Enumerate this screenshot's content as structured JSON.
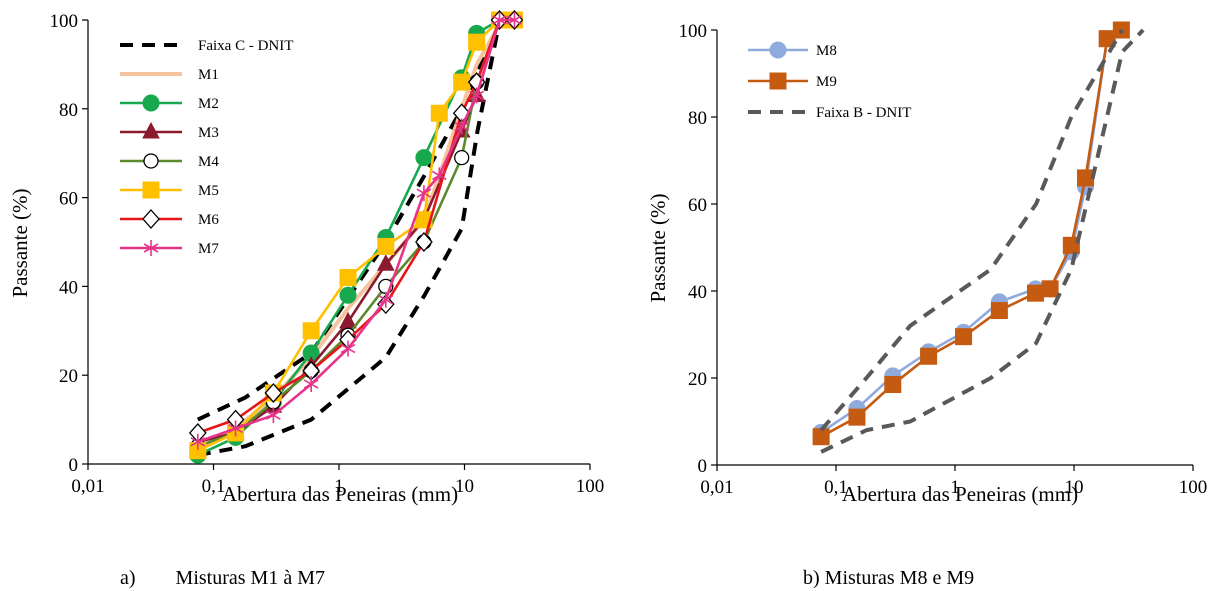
{
  "chart_data": [
    {
      "type": "line",
      "xscale": "log",
      "xlim": [
        0.01,
        100
      ],
      "ylim": [
        0,
        100
      ],
      "xticks": [
        0.01,
        0.1,
        1,
        10,
        100
      ],
      "xtick_labels": [
        "0,01",
        "0,1",
        "1",
        "10",
        "100"
      ],
      "yticks": [
        0,
        20,
        40,
        60,
        80,
        100
      ],
      "ytick_labels": [
        "0",
        "20",
        "40",
        "60",
        "80",
        "100"
      ],
      "xlabel": "Abertura das Peneiras (mm)",
      "ylabel": "Passante (%)",
      "caption": "a)        Misturas M1 à M7",
      "legend_position": "top-left",
      "grid": false,
      "series": [
        {
          "name": "Faixa C - DNIT",
          "color": "#000000",
          "style": "dashed",
          "marker": "none",
          "segments": [
            {
              "x": [
                0.075,
                0.18,
                0.6,
                2.36,
                4.8,
                9.5,
                19.1
              ],
              "y": [
                10,
                15,
                25,
                50,
                65,
                80,
                100
              ]
            },
            {
              "x": [
                0.075,
                0.18,
                0.6,
                2.36,
                4.8,
                9.5,
                12.7,
                19.1
              ],
              "y": [
                2,
                4,
                10,
                24,
                38,
                53,
                75,
                100
              ]
            }
          ]
        },
        {
          "name": "M1",
          "color": "#f5c49e",
          "style": "solid",
          "marker": "none",
          "width": 4,
          "x": [
            0.075,
            0.15,
            0.3,
            0.6,
            1.18,
            2.36,
            4.75,
            6.3,
            9.5,
            12.5,
            19,
            25
          ],
          "y": [
            3,
            8,
            15,
            24,
            35,
            45,
            55,
            65,
            80,
            90,
            99,
            100
          ]
        },
        {
          "name": "M2",
          "color": "#18a84e",
          "style": "solid",
          "marker": "circle-filled",
          "x": [
            0.075,
            0.15,
            0.3,
            0.6,
            1.18,
            2.36,
            4.75,
            9.5,
            12.5,
            19,
            25
          ],
          "y": [
            2,
            6,
            14,
            25,
            38,
            51,
            69,
            87,
            97,
            100,
            100
          ]
        },
        {
          "name": "M3",
          "color": "#8b1a2e",
          "style": "solid",
          "marker": "triangle-filled",
          "x": [
            0.075,
            0.15,
            0.3,
            0.6,
            1.18,
            2.36,
            4.75,
            9.5,
            12.5,
            19,
            25
          ],
          "y": [
            5,
            7,
            13,
            22,
            32,
            45,
            55,
            75,
            83,
            100,
            100
          ]
        },
        {
          "name": "M4",
          "color": "#5a8a2c",
          "style": "solid",
          "marker": "circle-open",
          "x": [
            0.075,
            0.15,
            0.3,
            0.6,
            1.18,
            2.36,
            4.75,
            9.5,
            12.5,
            19,
            25
          ],
          "y": [
            4,
            7,
            14,
            21,
            29,
            40,
            50,
            69,
            86,
            100,
            100
          ]
        },
        {
          "name": "M5",
          "color": "#ffc000",
          "style": "solid",
          "marker": "square-filled",
          "x": [
            0.075,
            0.15,
            0.3,
            0.6,
            1.18,
            2.36,
            4.75,
            6.3,
            9.5,
            12.5,
            19,
            25
          ],
          "y": [
            3,
            7,
            16,
            30,
            42,
            49,
            55,
            79,
            86,
            95,
            100,
            100
          ]
        },
        {
          "name": "M6",
          "color": "#e8161a",
          "style": "solid",
          "marker": "diamond-open",
          "x": [
            0.075,
            0.15,
            0.3,
            0.6,
            1.18,
            2.36,
            4.75,
            9.5,
            12.5,
            19,
            25
          ],
          "y": [
            7,
            10,
            16,
            21,
            28,
            36,
            50,
            79,
            86,
            100,
            100
          ]
        },
        {
          "name": "M7",
          "color": "#e8338a",
          "style": "solid",
          "marker": "asterisk",
          "x": [
            0.075,
            0.15,
            0.3,
            0.6,
            1.18,
            2.36,
            4.75,
            6.3,
            9.5,
            12.5,
            19,
            25
          ],
          "y": [
            5,
            8,
            11,
            18,
            26,
            37,
            61,
            65,
            76,
            83,
            100,
            100
          ]
        }
      ]
    },
    {
      "type": "line",
      "xscale": "log",
      "xlim": [
        0.01,
        100
      ],
      "ylim": [
        0,
        100
      ],
      "xticks": [
        0.01,
        0.1,
        1,
        10,
        100
      ],
      "xtick_labels": [
        "0,01",
        "0,1",
        "1",
        "10",
        "100"
      ],
      "yticks": [
        0,
        20,
        40,
        60,
        80,
        100
      ],
      "ytick_labels": [
        "0",
        "20",
        "40",
        "60",
        "80",
        "100"
      ],
      "xlabel": "Abertura das Peneiras (mm)",
      "ylabel": "Passante (%)",
      "caption": "b) Misturas M8 e M9",
      "legend_position": "top-left",
      "grid": false,
      "series": [
        {
          "name": "M8",
          "color": "#8faadc",
          "style": "solid",
          "marker": "circle-filled",
          "x": [
            0.075,
            0.15,
            0.3,
            0.6,
            1.18,
            2.36,
            4.75,
            6.3,
            9.5,
            12.5,
            19,
            25
          ],
          "y": [
            7.5,
            13,
            20.5,
            26,
            30.5,
            37.5,
            40.5,
            40.5,
            49,
            64,
            98,
            100
          ]
        },
        {
          "name": "M9",
          "color": "#c55a11",
          "style": "solid",
          "marker": "square-filled",
          "x": [
            0.075,
            0.15,
            0.3,
            0.6,
            1.18,
            2.36,
            4.75,
            6.3,
            9.5,
            12.5,
            19,
            25
          ],
          "y": [
            6.5,
            11,
            18.5,
            25,
            29.5,
            35.5,
            39.5,
            40.5,
            50.5,
            66,
            98,
            100
          ]
        },
        {
          "name": "Faixa B - DNIT",
          "color": "#595959",
          "style": "dashed",
          "marker": "none",
          "segments": [
            {
              "x": [
                0.075,
                0.18,
                0.42,
                2.0,
                4.8,
                9.5,
                25.4
              ],
              "y": [
                8,
                20,
                32,
                45,
                60,
                80,
                100
              ]
            },
            {
              "x": [
                0.075,
                0.18,
                0.42,
                2.0,
                4.8,
                9.5,
                25.4,
                38.1
              ],
              "y": [
                3,
                8,
                10,
                20,
                28,
                45,
                95,
                100
              ]
            }
          ]
        }
      ]
    }
  ]
}
